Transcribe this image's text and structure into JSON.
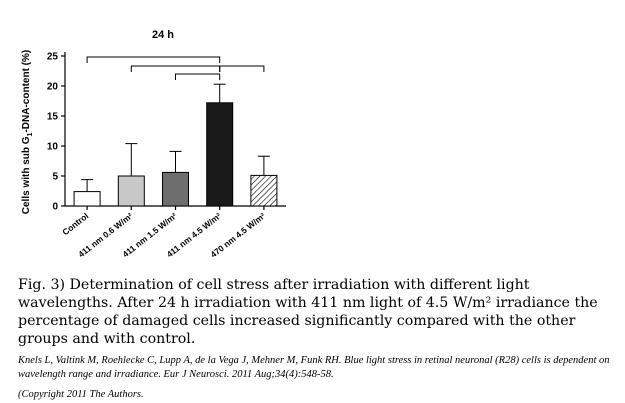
{
  "chart_data": {
    "type": "bar",
    "title": "24 h",
    "ylabel": "Cells with sub G1-DNA-content (%)",
    "ylabel_parts": {
      "before": "Cells with sub G",
      "sub": "1",
      "after": "-DNA-content (%)"
    },
    "ylim": [
      0,
      25
    ],
    "yticks": [
      0,
      5,
      10,
      15,
      20,
      25
    ],
    "ytick_labels": [
      "0",
      "5",
      "10",
      "15",
      "20",
      "25"
    ],
    "categories": [
      "Control",
      "411 nm 0.6 W/m²",
      "411 nm 1.5 W/m²",
      "411 nm 4.5 W/m²",
      "470 nm 4.5 W/m²"
    ],
    "values": [
      2.4,
      5.0,
      5.6,
      17.2,
      5.1
    ],
    "errors": [
      2.0,
      5.4,
      3.5,
      3.1,
      3.2
    ],
    "bar_colors": [
      "#ffffff",
      "#c8c8c8",
      "#6e6e6e",
      "#1a1a1a",
      "hatched"
    ],
    "significance_brackets": [
      {
        "from": 0,
        "to": 3
      },
      {
        "from": 1,
        "to": 3
      },
      {
        "from": 2,
        "to": 3
      },
      {
        "from": 3,
        "to": 4
      }
    ],
    "grid": false
  },
  "caption": {
    "text": "Fig. 3) Determination of cell stress after irradiation with different light wavelengths. After 24 h irradiation with 411 nm light of 4.5 W/m² irradiance the percentage of damaged cells increased significantly compared with the other groups and with control."
  },
  "citation": {
    "text": "Knels L, Valtink M, Roehlecke C, Lupp A, de la Vega J, Mehner M, Funk RH. Blue light stress in retinal neuronal (R28) cells is dependent on wavelength range and irradiance. Eur J Neurosci. 2011 Aug;34(4):548-58."
  },
  "copyright": {
    "text": "(Copyright 2011 The Authors."
  }
}
